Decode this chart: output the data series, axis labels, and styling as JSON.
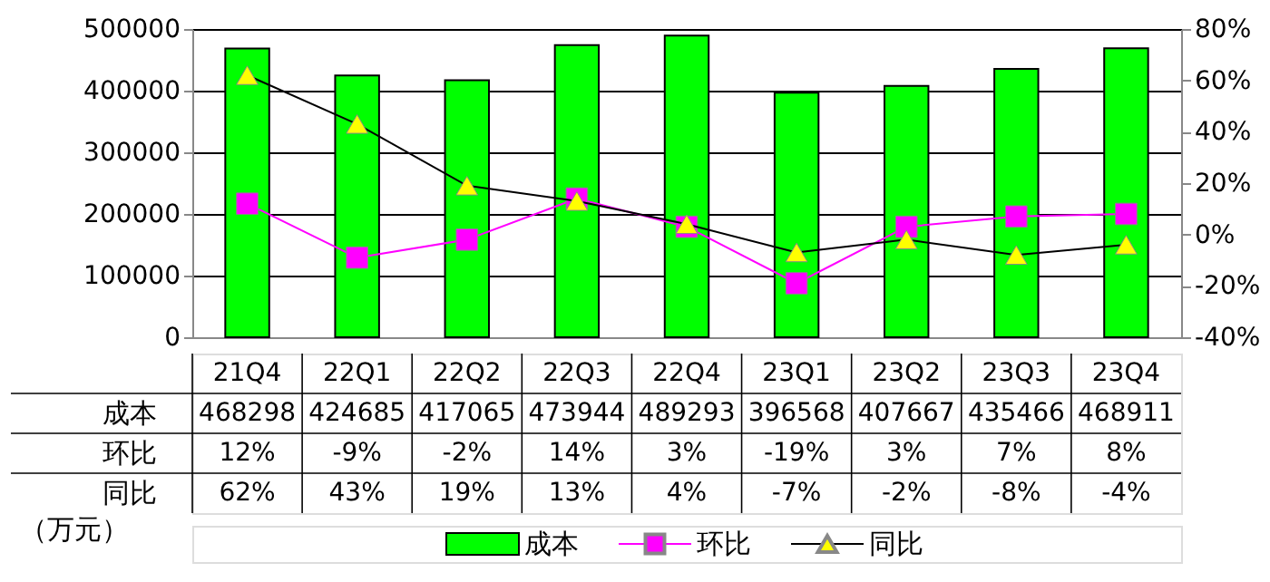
{
  "chart_data": {
    "type": "bar",
    "categories": [
      "21Q4",
      "22Q1",
      "22Q2",
      "22Q3",
      "22Q4",
      "23Q1",
      "23Q2",
      "23Q3",
      "23Q4"
    ],
    "series": [
      {
        "name": "成本",
        "type": "bar",
        "color": "#00ff00",
        "values": [
          468298,
          424685,
          417065,
          473944,
          489293,
          396568,
          407667,
          435466,
          468911
        ],
        "value_labels": [
          "468298",
          "424685",
          "417065",
          "473944",
          "489293",
          "396568",
          "407667",
          "435466",
          "468911"
        ]
      },
      {
        "name": "环比",
        "type": "line",
        "axis": "y2",
        "marker": "square",
        "color": "#ff00ff",
        "values": [
          12,
          -9,
          -2,
          14,
          3,
          -19,
          3,
          7,
          8
        ],
        "value_labels": [
          "12%",
          "-9%",
          "-2%",
          "14%",
          "3%",
          "-19%",
          "3%",
          "7%",
          "8%"
        ]
      },
      {
        "name": "同比",
        "type": "line",
        "axis": "y2",
        "marker": "triangle",
        "color": "#ffff00",
        "values": [
          62,
          43,
          19,
          13,
          4,
          -7,
          -2,
          -8,
          -4
        ],
        "value_labels": [
          "62%",
          "43%",
          "19%",
          "13%",
          "4%",
          "-7%",
          "-2%",
          "-8%",
          "-4%"
        ]
      }
    ],
    "ylim": [
      0,
      500000
    ],
    "yticks": [
      0,
      100000,
      200000,
      300000,
      400000,
      500000
    ],
    "y2lim": [
      -40,
      80
    ],
    "y2ticks": [
      {
        "value": -40,
        "label": "-40%"
      },
      {
        "value": -20,
        "label": "-20%"
      },
      {
        "value": 0,
        "label": "0%"
      },
      {
        "value": 20,
        "label": "20%"
      },
      {
        "value": 40,
        "label": "40%"
      },
      {
        "value": 60,
        "label": "60%"
      },
      {
        "value": 80,
        "label": "80%"
      }
    ],
    "grid": "y",
    "legend": "bottom",
    "annotations": [
      "（万元）"
    ]
  }
}
